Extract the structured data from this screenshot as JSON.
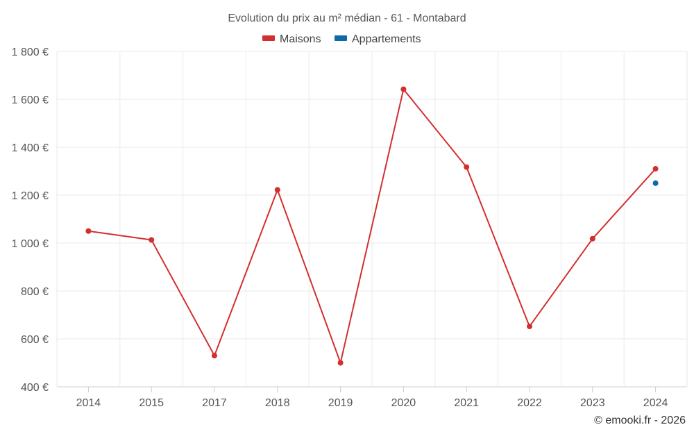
{
  "chart_data": {
    "type": "line",
    "title": "Evolution du prix au m² médian - 61 - Montabard",
    "categories": [
      "2014",
      "2015",
      "2017",
      "2018",
      "2019",
      "2020",
      "2021",
      "2022",
      "2023",
      "2024"
    ],
    "series": [
      {
        "name": "Maisons",
        "color": "#d32f2f",
        "values": [
          1050,
          1013,
          530,
          1222,
          500,
          1642,
          1317,
          652,
          1018,
          1310
        ]
      },
      {
        "name": "Appartements",
        "color": "#0d6aa8",
        "values": [
          null,
          null,
          null,
          null,
          null,
          null,
          null,
          null,
          null,
          1250
        ]
      }
    ],
    "ylim": [
      400,
      1800
    ],
    "yticks": [
      400,
      600,
      800,
      1000,
      1200,
      1400,
      1600,
      1800
    ],
    "ytick_labels": [
      "400 €",
      "600 €",
      "800 €",
      "1 000 €",
      "1 200 €",
      "1 400 €",
      "1 600 €",
      "1 800 €"
    ],
    "xlabel": "",
    "ylabel": "",
    "grid": true,
    "legend_position": "top-center",
    "credit": "© emooki.fr - 2026"
  }
}
